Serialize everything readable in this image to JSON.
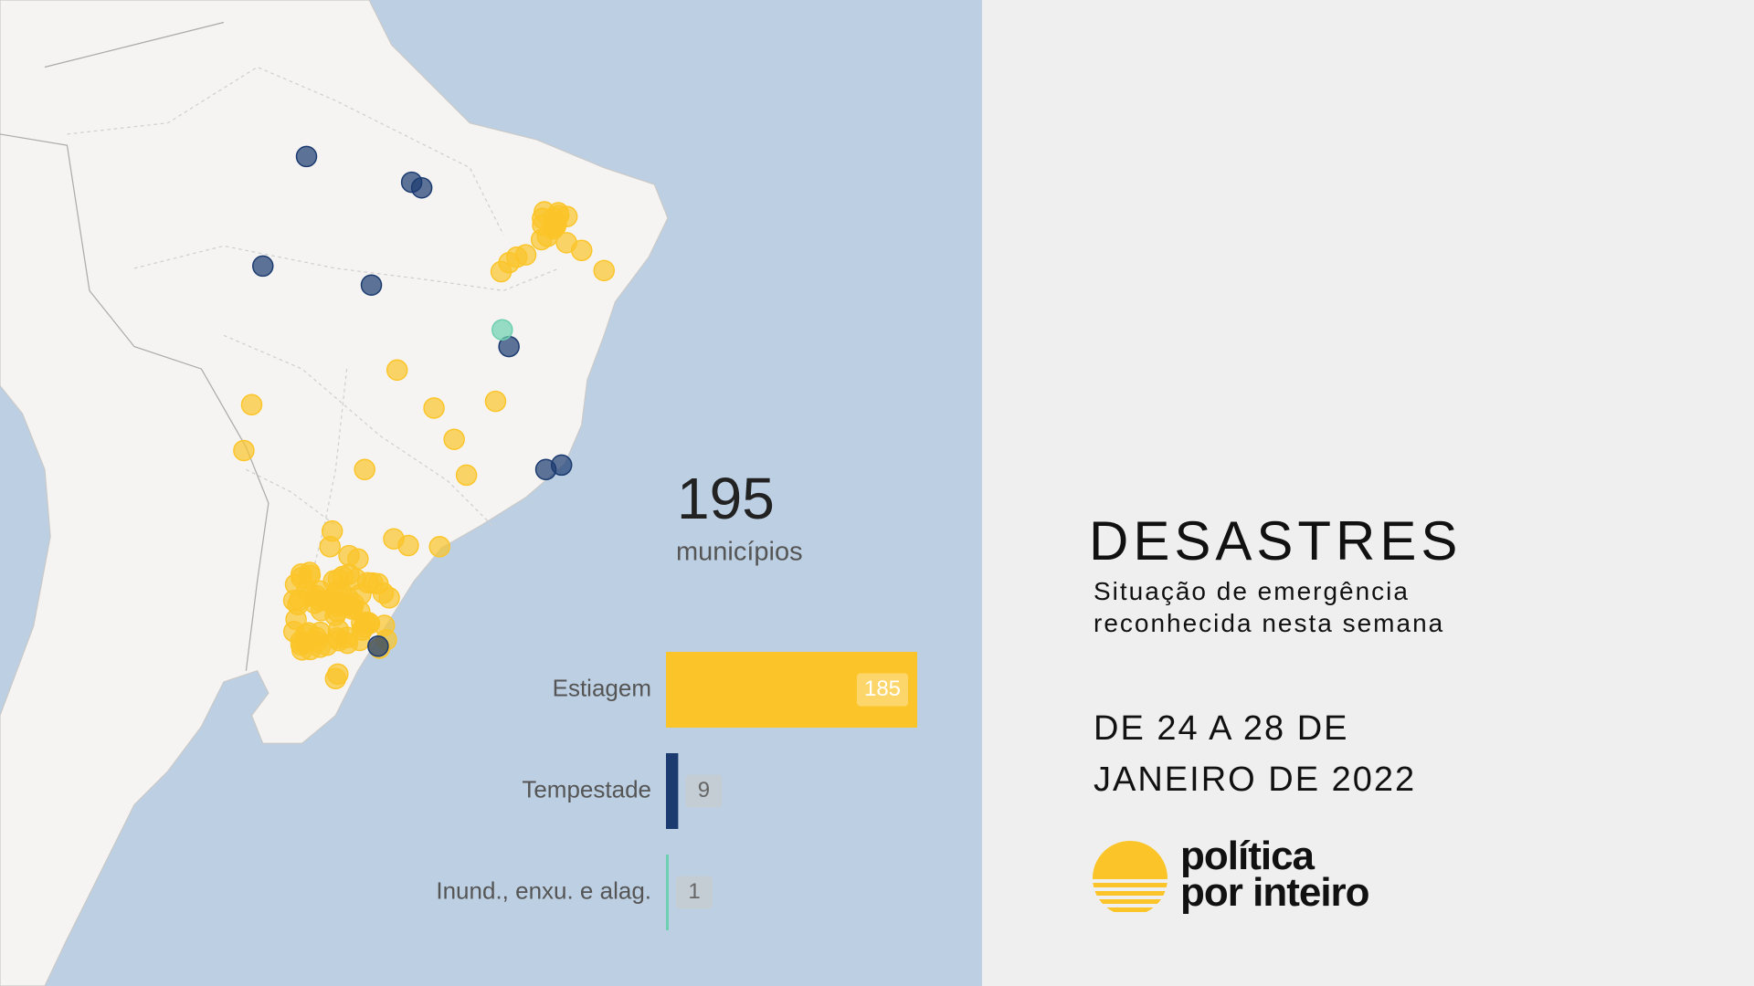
{
  "chart_data": {
    "type": "bar",
    "orientation": "horizontal",
    "total": 195,
    "total_label": "municípios",
    "categories": [
      "Estiagem",
      "Tempestade",
      "Inund., enxu. e alag."
    ],
    "values": [
      185,
      9,
      1
    ],
    "colors": [
      "#fbc52a",
      "#1b3b70",
      "#6dd0b0"
    ]
  },
  "panel": {
    "title": "DESASTRES",
    "subtitle": "Situação de emergência reconhecida nesta semana",
    "period": "DE 24 A 28 DE JANEIRO DE 2022"
  },
  "logo": {
    "line1": "política",
    "line2": "por inteiro"
  }
}
